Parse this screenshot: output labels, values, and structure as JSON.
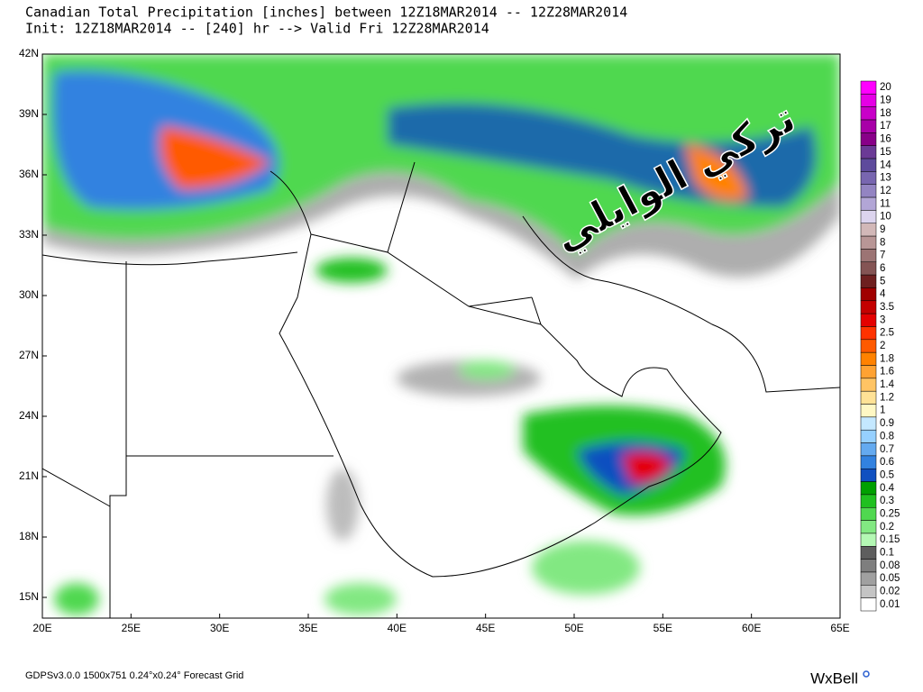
{
  "header": {
    "title_lines": [
      "Canadian Total Precipitation [inches] between 12Z18MAR2014 -- 12Z28MAR2014",
      "Init: 12Z18MAR2014 -- [240] hr --> Valid Fri 12Z28MAR2014"
    ]
  },
  "map": {
    "lat_labels": [
      "42N",
      "39N",
      "36N",
      "33N",
      "30N",
      "27N",
      "24N",
      "21N",
      "18N",
      "15N"
    ],
    "lon_labels": [
      "20E",
      "25E",
      "30E",
      "35E",
      "40E",
      "45E",
      "50E",
      "55E",
      "60E",
      "65E"
    ]
  },
  "legend": {
    "entries": [
      {
        "label": "20",
        "color": "#ff00ff"
      },
      {
        "label": "19",
        "color": "#e600e6"
      },
      {
        "label": "18",
        "color": "#c800c8"
      },
      {
        "label": "17",
        "color": "#a800a8"
      },
      {
        "label": "16",
        "color": "#880088"
      },
      {
        "label": "15",
        "color": "#6b3a96"
      },
      {
        "label": "14",
        "color": "#5e4b9c"
      },
      {
        "label": "13",
        "color": "#7866b0"
      },
      {
        "label": "12",
        "color": "#9384c2"
      },
      {
        "label": "11",
        "color": "#b2a6d6"
      },
      {
        "label": "10",
        "color": "#dcd4ee"
      },
      {
        "label": "9",
        "color": "#d2b8b8"
      },
      {
        "label": "8",
        "color": "#b89696"
      },
      {
        "label": "7",
        "color": "#9c7474"
      },
      {
        "label": "6",
        "color": "#845454"
      },
      {
        "label": "5",
        "color": "#6e2020"
      },
      {
        "label": "4",
        "color": "#a00000"
      },
      {
        "label": "3.5",
        "color": "#c40000"
      },
      {
        "label": "3",
        "color": "#e40000"
      },
      {
        "label": "2.5",
        "color": "#ff3200"
      },
      {
        "label": "2",
        "color": "#ff5a00"
      },
      {
        "label": "1.8",
        "color": "#ff8200"
      },
      {
        "label": "1.6",
        "color": "#ffa232"
      },
      {
        "label": "1.4",
        "color": "#ffc464"
      },
      {
        "label": "1.2",
        "color": "#ffe296"
      },
      {
        "label": "1",
        "color": "#fff8c4"
      },
      {
        "label": "0.9",
        "color": "#c4e8ff"
      },
      {
        "label": "0.8",
        "color": "#96d0ff"
      },
      {
        "label": "0.7",
        "color": "#64aaf0"
      },
      {
        "label": "0.6",
        "color": "#3282e0"
      },
      {
        "label": "0.5",
        "color": "#1050c0"
      },
      {
        "label": "0.4",
        "color": "#00a000"
      },
      {
        "label": "0.3",
        "color": "#20c020"
      },
      {
        "label": "0.25",
        "color": "#50d850"
      },
      {
        "label": "0.2",
        "color": "#82e882"
      },
      {
        "label": "0.15",
        "color": "#b4f8b4"
      },
      {
        "label": "0.1",
        "color": "#5e5e5e"
      },
      {
        "label": "0.08",
        "color": "#7e7e7e"
      },
      {
        "label": "0.05",
        "color": "#a0a0a0"
      },
      {
        "label": "0.02",
        "color": "#c4c4c4"
      },
      {
        "label": "0.01",
        "color": "#ffffff"
      }
    ]
  },
  "footer": {
    "left": "GDPSv3.0.0 1500x751 0.24°x0.24° Forecast Grid",
    "brand": "WxBell"
  },
  "watermark": "تركي الوايلي"
}
